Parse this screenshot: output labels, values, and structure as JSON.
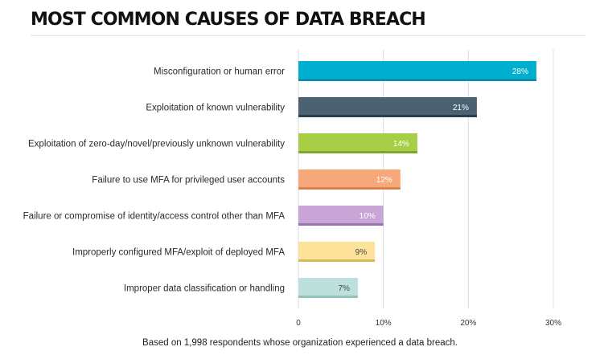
{
  "title": "MOST COMMON CAUSES OF DATA BREACH",
  "footnote": "Based on 1,998 respondents whose organization experienced a data breach.",
  "chart_data": {
    "type": "bar",
    "orientation": "horizontal",
    "title": "MOST COMMON CAUSES OF DATA BREACH",
    "xlabel": "",
    "ylabel": "",
    "xlim": [
      0,
      30
    ],
    "grid": true,
    "categories": [
      "Misconfiguration or human error",
      "Exploitation of known vulnerability",
      "Exploitation of zero-day/novel/previously unknown vulnerability",
      "Failure to use MFA for privileged user accounts",
      "Failure or compromise of identity/access control other than MFA",
      "Improperly configured MFA/exploit of deployed MFA",
      "Improper data classification or handling"
    ],
    "values": [
      28,
      21,
      14,
      12,
      10,
      9,
      7
    ],
    "data_labels": [
      "28%",
      "21%",
      "14%",
      "12%",
      "10%",
      "9%",
      "7%"
    ],
    "colors": [
      "#00aed0",
      "#4a6272",
      "#a6cf45",
      "#f7a878",
      "#c8a5d6",
      "#fde29a",
      "#bde0dc"
    ],
    "shadow_colors": [
      "#0b8fb0",
      "#2c3e4a",
      "#7fa72e",
      "#d98250",
      "#9b72ad",
      "#d9b85a",
      "#8fc3bc"
    ],
    "label_colors": [
      "#ffffff",
      "#ffffff",
      "#ffffff",
      "#ffffff",
      "#ffffff",
      "#444444",
      "#444444"
    ],
    "ticks": [
      0,
      10,
      20,
      30
    ],
    "tick_labels": [
      "0",
      "10%",
      "20%",
      "30%"
    ]
  }
}
